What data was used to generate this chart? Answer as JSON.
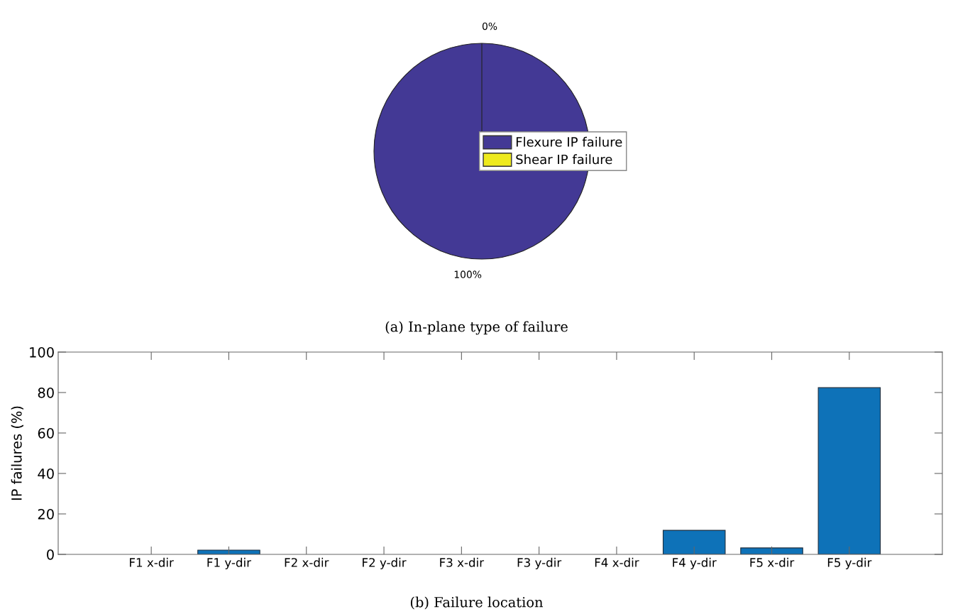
{
  "chart_data": [
    {
      "type": "pie",
      "title": "(a) In-plane type of failure",
      "categories": [
        "Flexure IP failure",
        "Shear IP failure"
      ],
      "values": [
        100,
        0
      ],
      "value_labels": [
        "100%",
        "0%"
      ],
      "colors": [
        "#433995",
        "#eeea1d"
      ],
      "legend": "right"
    },
    {
      "type": "bar",
      "title": "(b) Failure location",
      "ylabel": "IP failures (%)",
      "categories": [
        "F1 x-dir",
        "F1 y-dir",
        "F2 x-dir",
        "F2 y-dir",
        "F3 x-dir",
        "F3 y-dir",
        "F4 x-dir",
        "F4 y-dir",
        "F5 x-dir",
        "F5 y-dir"
      ],
      "values": [
        0,
        2.1,
        0,
        0,
        0,
        0,
        0,
        11.9,
        3.2,
        82.4
      ],
      "color": "#0e72b8",
      "ylim": [
        0,
        100
      ],
      "yticks": [
        0,
        20,
        40,
        60,
        80,
        100
      ],
      "grid": false
    }
  ]
}
